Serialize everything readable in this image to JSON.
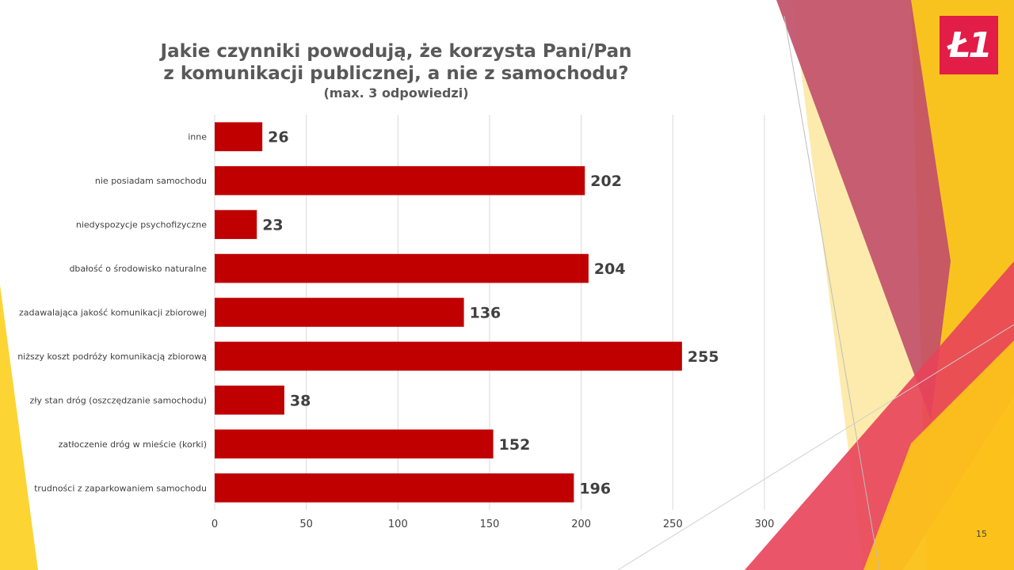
{
  "slide": {
    "title_line1": "Jakie czynniki powodują, że korzysta Pani/Pan",
    "title_line2": "z komunikacji publicznej, a nie z samochodu?",
    "title_line3": "(max. 3 odpowiedzi)",
    "logo_text": "Ł1",
    "page_number": "15"
  },
  "colors": {
    "bar": "#c00000",
    "grid": "#d9d9d9",
    "label": "#404040",
    "value_label": "#404040",
    "decor_yellow": "#fcd535",
    "decor_pink": "#e8425a",
    "logo_bg": "#e11d48"
  },
  "chart_data": {
    "type": "bar",
    "orientation": "horizontal",
    "categories": [
      "inne",
      "nie posiadam samochodu",
      "niedyspozycje psychofizyczne",
      "dbałość o środowisko naturalne",
      "zadawalająca jakość komunikacji zbiorowej",
      "niższy koszt podróży komunikacją zbiorową",
      "zły stan dróg (oszczędzanie samochodu)",
      "zatłoczenie dróg w mieście (korki)",
      "trudności z zaparkowaniem samochodu"
    ],
    "values": [
      26,
      202,
      23,
      204,
      136,
      255,
      38,
      152,
      196
    ],
    "xlim": [
      0,
      300
    ],
    "xticks": [
      0,
      50,
      100,
      150,
      200,
      250,
      300
    ],
    "grid": true,
    "data_labels": true
  }
}
